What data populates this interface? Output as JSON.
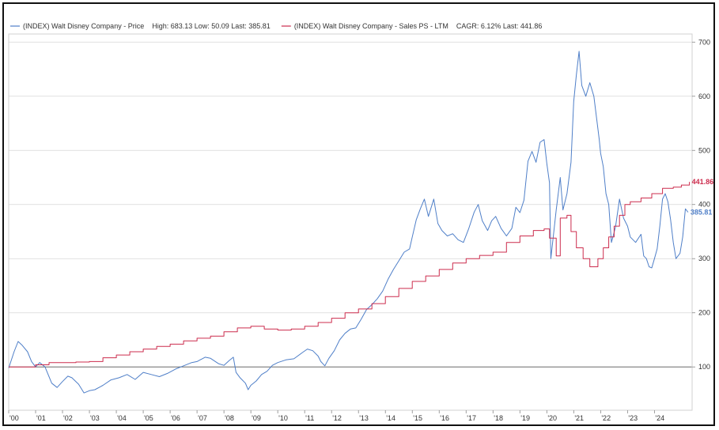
{
  "chart_data": {
    "type": "line",
    "title": "",
    "xlabel": "",
    "ylabel": "",
    "x_ticks": [
      "'00",
      "'01",
      "'02",
      "'03",
      "'04",
      "'05",
      "'06",
      "'07",
      "'08",
      "'09",
      "'10",
      "'11",
      "'12",
      "'13",
      "'14",
      "'15",
      "'16",
      "'17",
      "'18",
      "'19",
      "'20",
      "'21",
      "'22",
      "'23",
      "'24"
    ],
    "y_ticks": [
      100,
      200,
      300,
      400,
      500,
      600,
      700
    ],
    "xlim": [
      2000.0,
      2025.4
    ],
    "ylim": [
      20,
      715
    ],
    "grid": true,
    "baseline": 100,
    "legend_position": "top-left",
    "series": [
      {
        "legend": "(INDEX) Walt Disney Company - Price    High: 683.13 Low: 50.09 Last: 385.81",
        "color": "#4f7fc8",
        "end_label": "385.81",
        "points": [
          [
            2000.0,
            98
          ],
          [
            2000.2,
            128
          ],
          [
            2000.35,
            147
          ],
          [
            2000.5,
            140
          ],
          [
            2000.7,
            128
          ],
          [
            2000.85,
            110
          ],
          [
            2001.0,
            100
          ],
          [
            2001.15,
            108
          ],
          [
            2001.35,
            100
          ],
          [
            2001.6,
            70
          ],
          [
            2001.8,
            62
          ],
          [
            2002.0,
            73
          ],
          [
            2002.2,
            83
          ],
          [
            2002.35,
            80
          ],
          [
            2002.6,
            68
          ],
          [
            2002.8,
            52
          ],
          [
            2003.0,
            56
          ],
          [
            2003.2,
            58
          ],
          [
            2003.5,
            66
          ],
          [
            2003.8,
            76
          ],
          [
            2004.1,
            80
          ],
          [
            2004.4,
            86
          ],
          [
            2004.7,
            77
          ],
          [
            2005.0,
            90
          ],
          [
            2005.3,
            86
          ],
          [
            2005.6,
            82
          ],
          [
            2005.9,
            88
          ],
          [
            2006.2,
            96
          ],
          [
            2006.5,
            102
          ],
          [
            2006.8,
            108
          ],
          [
            2007.0,
            110
          ],
          [
            2007.3,
            118
          ],
          [
            2007.5,
            116
          ],
          [
            2007.8,
            106
          ],
          [
            2008.0,
            103
          ],
          [
            2008.2,
            112
          ],
          [
            2008.35,
            118
          ],
          [
            2008.45,
            90
          ],
          [
            2008.6,
            80
          ],
          [
            2008.8,
            70
          ],
          [
            2008.9,
            58
          ],
          [
            2009.0,
            66
          ],
          [
            2009.2,
            74
          ],
          [
            2009.4,
            86
          ],
          [
            2009.6,
            92
          ],
          [
            2009.8,
            103
          ],
          [
            2010.0,
            108
          ],
          [
            2010.3,
            113
          ],
          [
            2010.6,
            115
          ],
          [
            2010.9,
            126
          ],
          [
            2011.1,
            133
          ],
          [
            2011.3,
            130
          ],
          [
            2011.5,
            120
          ],
          [
            2011.6,
            110
          ],
          [
            2011.75,
            102
          ],
          [
            2011.9,
            116
          ],
          [
            2012.1,
            130
          ],
          [
            2012.3,
            150
          ],
          [
            2012.5,
            162
          ],
          [
            2012.7,
            170
          ],
          [
            2012.9,
            172
          ],
          [
            2013.1,
            188
          ],
          [
            2013.3,
            206
          ],
          [
            2013.5,
            215
          ],
          [
            2013.7,
            226
          ],
          [
            2013.9,
            240
          ],
          [
            2014.1,
            262
          ],
          [
            2014.3,
            280
          ],
          [
            2014.5,
            296
          ],
          [
            2014.7,
            312
          ],
          [
            2014.9,
            318
          ],
          [
            2015.0,
            340
          ],
          [
            2015.15,
            372
          ],
          [
            2015.3,
            392
          ],
          [
            2015.45,
            410
          ],
          [
            2015.6,
            378
          ],
          [
            2015.8,
            410
          ],
          [
            2015.95,
            365
          ],
          [
            2016.1,
            352
          ],
          [
            2016.3,
            342
          ],
          [
            2016.5,
            346
          ],
          [
            2016.7,
            335
          ],
          [
            2016.9,
            330
          ],
          [
            2017.1,
            356
          ],
          [
            2017.3,
            386
          ],
          [
            2017.45,
            400
          ],
          [
            2017.6,
            370
          ],
          [
            2017.8,
            352
          ],
          [
            2017.95,
            370
          ],
          [
            2018.1,
            378
          ],
          [
            2018.3,
            356
          ],
          [
            2018.5,
            342
          ],
          [
            2018.7,
            356
          ],
          [
            2018.85,
            395
          ],
          [
            2019.0,
            385
          ],
          [
            2019.15,
            408
          ],
          [
            2019.3,
            480
          ],
          [
            2019.45,
            498
          ],
          [
            2019.6,
            478
          ],
          [
            2019.75,
            515
          ],
          [
            2019.9,
            520
          ],
          [
            2020.0,
            476
          ],
          [
            2020.1,
            440
          ],
          [
            2020.15,
            300
          ],
          [
            2020.25,
            345
          ],
          [
            2020.35,
            390
          ],
          [
            2020.5,
            450
          ],
          [
            2020.6,
            390
          ],
          [
            2020.75,
            420
          ],
          [
            2020.9,
            478
          ],
          [
            2021.0,
            590
          ],
          [
            2021.1,
            640
          ],
          [
            2021.2,
            683
          ],
          [
            2021.3,
            620
          ],
          [
            2021.45,
            600
          ],
          [
            2021.6,
            625
          ],
          [
            2021.75,
            600
          ],
          [
            2021.85,
            560
          ],
          [
            2021.95,
            520
          ],
          [
            2022.0,
            495
          ],
          [
            2022.1,
            470
          ],
          [
            2022.2,
            420
          ],
          [
            2022.3,
            400
          ],
          [
            2022.4,
            330
          ],
          [
            2022.55,
            358
          ],
          [
            2022.7,
            410
          ],
          [
            2022.85,
            375
          ],
          [
            2023.0,
            360
          ],
          [
            2023.1,
            340
          ],
          [
            2023.3,
            330
          ],
          [
            2023.5,
            345
          ],
          [
            2023.6,
            305
          ],
          [
            2023.7,
            300
          ],
          [
            2023.8,
            285
          ],
          [
            2023.9,
            283
          ],
          [
            2024.0,
            300
          ],
          [
            2024.1,
            318
          ],
          [
            2024.2,
            360
          ],
          [
            2024.3,
            410
          ],
          [
            2024.4,
            420
          ],
          [
            2024.5,
            405
          ],
          [
            2024.6,
            372
          ],
          [
            2024.7,
            330
          ],
          [
            2024.8,
            300
          ],
          [
            2024.95,
            310
          ],
          [
            2025.05,
            340
          ],
          [
            2025.15,
            392
          ],
          [
            2025.25,
            385.81
          ]
        ]
      },
      {
        "legend": "(INDEX) Walt Disney Company - Sales PS - LTM    CAGR: 6.12% Last: 441.86",
        "color": "#cc2c4d",
        "end_label": "441.86",
        "points": [
          [
            2000.0,
            100
          ],
          [
            2001.0,
            104
          ],
          [
            2001.5,
            108
          ],
          [
            2002.0,
            108
          ],
          [
            2002.5,
            109
          ],
          [
            2003.0,
            110
          ],
          [
            2003.5,
            117
          ],
          [
            2004.0,
            122
          ],
          [
            2004.5,
            128
          ],
          [
            2005.0,
            133
          ],
          [
            2005.5,
            138
          ],
          [
            2006.0,
            142
          ],
          [
            2006.5,
            148
          ],
          [
            2007.0,
            153
          ],
          [
            2007.5,
            157
          ],
          [
            2008.0,
            165
          ],
          [
            2008.5,
            172
          ],
          [
            2009.0,
            175
          ],
          [
            2009.5,
            170
          ],
          [
            2010.0,
            168
          ],
          [
            2010.5,
            170
          ],
          [
            2011.0,
            175
          ],
          [
            2011.5,
            182
          ],
          [
            2012.0,
            190
          ],
          [
            2012.5,
            200
          ],
          [
            2013.0,
            207
          ],
          [
            2013.5,
            217
          ],
          [
            2014.0,
            230
          ],
          [
            2014.5,
            245
          ],
          [
            2015.0,
            258
          ],
          [
            2015.5,
            268
          ],
          [
            2016.0,
            280
          ],
          [
            2016.5,
            292
          ],
          [
            2017.0,
            300
          ],
          [
            2017.5,
            306
          ],
          [
            2018.0,
            312
          ],
          [
            2018.5,
            330
          ],
          [
            2019.0,
            342
          ],
          [
            2019.5,
            352
          ],
          [
            2019.9,
            355
          ],
          [
            2020.1,
            338
          ],
          [
            2020.35,
            305
          ],
          [
            2020.5,
            375
          ],
          [
            2020.75,
            380
          ],
          [
            2020.9,
            350
          ],
          [
            2021.1,
            320
          ],
          [
            2021.35,
            300
          ],
          [
            2021.6,
            285
          ],
          [
            2021.9,
            300
          ],
          [
            2022.1,
            320
          ],
          [
            2022.3,
            340
          ],
          [
            2022.5,
            360
          ],
          [
            2022.7,
            380
          ],
          [
            2022.9,
            400
          ],
          [
            2023.1,
            405
          ],
          [
            2023.5,
            412
          ],
          [
            2023.9,
            420
          ],
          [
            2024.3,
            430
          ],
          [
            2024.7,
            432
          ],
          [
            2025.0,
            436
          ],
          [
            2025.3,
            441.86
          ]
        ]
      }
    ]
  }
}
